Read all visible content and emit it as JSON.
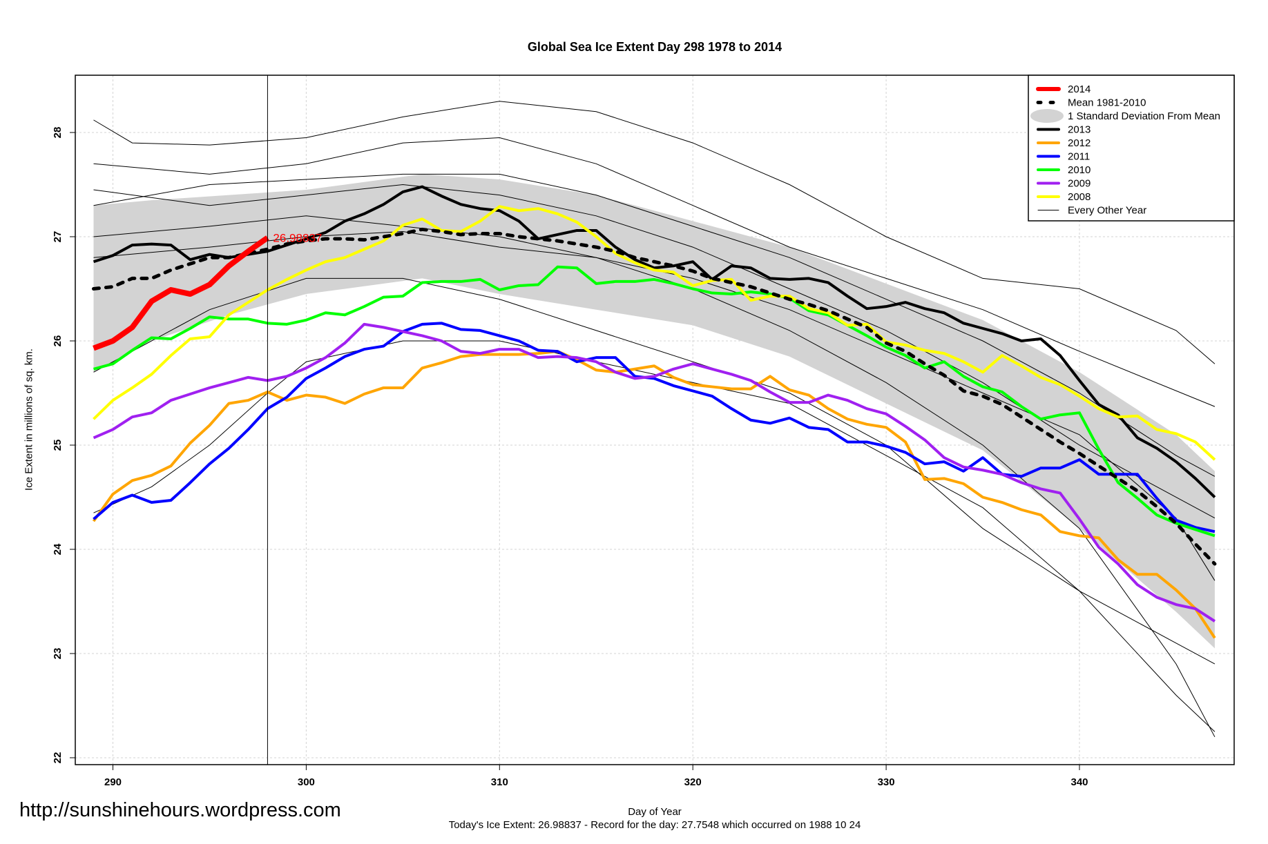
{
  "chart_data": {
    "type": "line",
    "title": "Global Sea Ice Extent Day 298 1978 to 2014",
    "xlabel": "Day of Year",
    "ylabel": "Ice Extent in millions of sq. km.",
    "footer": "Today's Ice Extent: 26.98837  - Record for the day: 27.7548 which occurred on 1988 10 24",
    "xlim": [
      289,
      347
    ],
    "ylim": [
      22,
      28.5
    ],
    "xticks": [
      290,
      300,
      310,
      320,
      330,
      340
    ],
    "yticks": [
      22,
      23,
      24,
      25,
      26,
      27,
      28
    ],
    "grid": true,
    "legend_position": "top-right",
    "current_day": 298,
    "current_label": "26.98837",
    "legend": [
      {
        "label": "2014",
        "color": "#ff0000",
        "style": "thick"
      },
      {
        "label": "Mean 1981-2010",
        "color": "#000000",
        "style": "dashed"
      },
      {
        "label": "1 Standard Deviation From Mean",
        "color": "#d3d3d3",
        "style": "band"
      },
      {
        "label": "2013",
        "color": "#000000",
        "style": "solid"
      },
      {
        "label": "2012",
        "color": "#ffa500",
        "style": "solid"
      },
      {
        "label": "2011",
        "color": "#0000ff",
        "style": "solid"
      },
      {
        "label": "2010",
        "color": "#00ff00",
        "style": "solid"
      },
      {
        "label": "2009",
        "color": "#a020f0",
        "style": "solid"
      },
      {
        "label": "2008",
        "color": "#ffff00",
        "style": "solid"
      },
      {
        "label": "Every Other Year",
        "color": "#000000",
        "style": "thin"
      }
    ],
    "sd_band": {
      "upper": [
        [
          289,
          27.3
        ],
        [
          292,
          27.35
        ],
        [
          296,
          27.4
        ],
        [
          300,
          27.45
        ],
        [
          306,
          27.6
        ],
        [
          310,
          27.55
        ],
        [
          315,
          27.4
        ],
        [
          320,
          27.15
        ],
        [
          325,
          26.9
        ],
        [
          330,
          26.55
        ],
        [
          335,
          26.2
        ],
        [
          340,
          25.7
        ],
        [
          345,
          25.1
        ],
        [
          347,
          24.75
        ]
      ],
      "lower": [
        [
          289,
          25.7
        ],
        [
          292,
          26.0
        ],
        [
          296,
          26.25
        ],
        [
          300,
          26.45
        ],
        [
          306,
          26.6
        ],
        [
          310,
          26.45
        ],
        [
          315,
          26.3
        ],
        [
          320,
          26.15
        ],
        [
          325,
          25.85
        ],
        [
          330,
          25.4
        ],
        [
          335,
          24.95
        ],
        [
          340,
          24.2
        ],
        [
          345,
          23.4
        ],
        [
          347,
          23.05
        ]
      ]
    },
    "other_years": [
      [
        [
          289,
          28.12
        ],
        [
          291,
          27.9
        ],
        [
          295,
          27.88
        ],
        [
          300,
          27.95
        ],
        [
          305,
          28.15
        ],
        [
          310,
          28.3
        ],
        [
          315,
          28.2
        ],
        [
          320,
          27.9
        ],
        [
          325,
          27.5
        ],
        [
          330,
          27.0
        ],
        [
          335,
          26.6
        ],
        [
          340,
          26.5
        ],
        [
          345,
          26.1
        ],
        [
          347,
          25.78
        ]
      ],
      [
        [
          289,
          27.7
        ],
        [
          295,
          27.6
        ],
        [
          300,
          27.7
        ],
        [
          305,
          27.9
        ],
        [
          310,
          27.95
        ],
        [
          315,
          27.7
        ],
        [
          320,
          27.3
        ],
        [
          325,
          26.9
        ],
        [
          330,
          26.6
        ],
        [
          335,
          26.3
        ],
        [
          340,
          25.9
        ],
        [
          347,
          25.37
        ]
      ],
      [
        [
          289,
          27.45
        ],
        [
          295,
          27.3
        ],
        [
          300,
          27.4
        ],
        [
          305,
          27.5
        ],
        [
          310,
          27.4
        ],
        [
          315,
          27.2
        ],
        [
          320,
          26.9
        ],
        [
          325,
          26.5
        ],
        [
          330,
          26.1
        ],
        [
          335,
          25.6
        ],
        [
          340,
          25.0
        ],
        [
          347,
          24.3
        ]
      ],
      [
        [
          289,
          27.0
        ],
        [
          295,
          27.1
        ],
        [
          300,
          27.2
        ],
        [
          305,
          27.1
        ],
        [
          310,
          27.0
        ],
        [
          315,
          26.8
        ],
        [
          320,
          26.5
        ],
        [
          325,
          26.1
        ],
        [
          330,
          25.6
        ],
        [
          335,
          25.0
        ],
        [
          340,
          24.2
        ],
        [
          345,
          22.9
        ],
        [
          347,
          22.2
        ]
      ],
      [
        [
          289,
          25.7
        ],
        [
          295,
          26.3
        ],
        [
          300,
          26.6
        ],
        [
          305,
          26.6
        ],
        [
          310,
          26.4
        ],
        [
          315,
          26.1
        ],
        [
          320,
          25.8
        ],
        [
          325,
          25.5
        ],
        [
          330,
          25.0
        ],
        [
          335,
          24.2
        ],
        [
          340,
          23.6
        ],
        [
          345,
          22.6
        ],
        [
          347,
          22.25
        ]
      ],
      [
        [
          289,
          24.35
        ],
        [
          292,
          24.6
        ],
        [
          295,
          25.0
        ],
        [
          298,
          25.5
        ],
        [
          300,
          25.8
        ],
        [
          305,
          26.0
        ],
        [
          310,
          26.0
        ],
        [
          315,
          25.8
        ],
        [
          320,
          25.6
        ],
        [
          325,
          25.4
        ],
        [
          330,
          24.9
        ],
        [
          335,
          24.4
        ],
        [
          340,
          23.6
        ],
        [
          345,
          23.1
        ],
        [
          347,
          22.9
        ]
      ],
      [
        [
          289,
          26.8
        ],
        [
          295,
          26.9
        ],
        [
          300,
          27.0
        ],
        [
          305,
          27.05
        ],
        [
          310,
          26.9
        ],
        [
          315,
          26.8
        ],
        [
          320,
          26.6
        ],
        [
          325,
          26.3
        ],
        [
          330,
          25.9
        ],
        [
          335,
          25.5
        ],
        [
          340,
          25.1
        ],
        [
          345,
          24.3
        ],
        [
          347,
          23.7
        ]
      ],
      [
        [
          289,
          27.3
        ],
        [
          295,
          27.5
        ],
        [
          300,
          27.55
        ],
        [
          305,
          27.6
        ],
        [
          310,
          27.6
        ],
        [
          315,
          27.4
        ],
        [
          320,
          27.1
        ],
        [
          325,
          26.8
        ],
        [
          330,
          26.4
        ],
        [
          335,
          26.0
        ],
        [
          340,
          25.5
        ],
        [
          345,
          24.9
        ],
        [
          347,
          24.7
        ]
      ]
    ],
    "series": [
      {
        "name": "Mean 1981-2010",
        "color": "#000000",
        "style": "dashed",
        "start": 289,
        "values": [
          26.5,
          26.52,
          26.6,
          26.6,
          26.68,
          26.74,
          26.8,
          26.8,
          26.84,
          26.88,
          26.93,
          26.96,
          26.98,
          26.98,
          26.97,
          27.0,
          27.03,
          27.07,
          27.05,
          27.02,
          27.03,
          27.03,
          27.0,
          26.98,
          26.96,
          26.93,
          26.9,
          26.86,
          26.8,
          26.76,
          26.72,
          26.67,
          26.6,
          26.56,
          26.52,
          26.46,
          26.4,
          26.35,
          26.29,
          26.21,
          26.13,
          25.98,
          25.9,
          25.78,
          25.67,
          25.52,
          25.47,
          25.39,
          25.27,
          25.15,
          25.03,
          24.92,
          24.8,
          24.68,
          24.56,
          24.41,
          24.25,
          24.05,
          23.86
        ]
      },
      {
        "name": "2013",
        "color": "#000000",
        "style": "solid",
        "start": 289,
        "values": [
          26.76,
          26.82,
          26.92,
          26.93,
          26.92,
          26.78,
          26.83,
          26.8,
          26.83,
          26.86,
          26.92,
          26.98,
          27.04,
          27.15,
          27.22,
          27.31,
          27.43,
          27.48,
          27.39,
          27.31,
          27.27,
          27.25,
          27.15,
          26.98,
          27.02,
          27.06,
          27.06,
          26.9,
          26.78,
          26.7,
          26.72,
          26.76,
          26.59,
          26.72,
          26.7,
          26.6,
          26.59,
          26.6,
          26.56,
          26.43,
          26.31,
          26.33,
          26.37,
          26.31,
          26.27,
          26.17,
          26.12,
          26.07,
          26.0,
          26.02,
          25.86,
          25.62,
          25.39,
          25.29,
          25.07,
          24.97,
          24.84,
          24.68,
          24.5
        ]
      },
      {
        "name": "2012",
        "color": "#ffa500",
        "style": "solid",
        "start": 289,
        "values": [
          24.27,
          24.53,
          24.66,
          24.71,
          24.8,
          25.02,
          25.19,
          25.4,
          25.43,
          25.51,
          25.43,
          25.48,
          25.46,
          25.4,
          25.49,
          25.55,
          25.55,
          25.74,
          25.79,
          25.85,
          25.87,
          25.87,
          25.87,
          25.88,
          25.9,
          25.82,
          25.72,
          25.7,
          25.73,
          25.76,
          25.65,
          25.58,
          25.56,
          25.54,
          25.54,
          25.66,
          25.53,
          25.48,
          25.35,
          25.25,
          25.2,
          25.17,
          25.03,
          24.67,
          24.68,
          24.63,
          24.5,
          24.45,
          24.38,
          24.33,
          24.17,
          24.13,
          24.11,
          23.9,
          23.76,
          23.76,
          23.61,
          23.43,
          23.15
        ]
      },
      {
        "name": "2011",
        "color": "#0000ff",
        "style": "solid",
        "start": 289,
        "values": [
          24.29,
          24.45,
          24.52,
          24.45,
          24.47,
          24.64,
          24.82,
          24.97,
          25.15,
          25.35,
          25.46,
          25.64,
          25.74,
          25.85,
          25.92,
          25.95,
          26.09,
          26.16,
          26.17,
          26.11,
          26.1,
          26.05,
          26.0,
          25.91,
          25.9,
          25.8,
          25.84,
          25.84,
          25.66,
          25.64,
          25.57,
          25.52,
          25.47,
          25.35,
          25.24,
          25.21,
          25.26,
          25.17,
          25.15,
          25.03,
          25.03,
          24.99,
          24.93,
          24.82,
          24.84,
          24.75,
          24.88,
          24.72,
          24.7,
          24.78,
          24.78,
          24.86,
          24.72,
          24.72,
          24.72,
          24.49,
          24.28,
          24.21,
          24.17
        ]
      },
      {
        "name": "2010",
        "color": "#00ff00",
        "style": "solid",
        "start": 289,
        "values": [
          25.73,
          25.78,
          25.91,
          26.03,
          26.02,
          26.12,
          26.23,
          26.21,
          26.21,
          26.17,
          26.16,
          26.2,
          26.27,
          26.25,
          26.33,
          26.42,
          26.43,
          26.56,
          26.57,
          26.57,
          26.59,
          26.49,
          26.53,
          26.54,
          26.71,
          26.7,
          26.55,
          26.57,
          26.57,
          26.59,
          26.55,
          26.5,
          26.46,
          26.45,
          26.47,
          26.45,
          26.41,
          26.29,
          26.25,
          26.15,
          26.05,
          25.94,
          25.86,
          25.74,
          25.8,
          25.66,
          25.56,
          25.51,
          25.37,
          25.25,
          25.29,
          25.31,
          24.96,
          24.64,
          24.49,
          24.33,
          24.25,
          24.19,
          24.13
        ]
      },
      {
        "name": "2009",
        "color": "#a020f0",
        "style": "solid",
        "start": 289,
        "values": [
          25.07,
          25.15,
          25.27,
          25.31,
          25.43,
          25.49,
          25.55,
          25.6,
          25.65,
          25.62,
          25.66,
          25.74,
          25.84,
          25.98,
          26.16,
          26.13,
          26.09,
          26.05,
          26.0,
          25.9,
          25.88,
          25.92,
          25.92,
          25.84,
          25.85,
          25.84,
          25.8,
          25.7,
          25.64,
          25.66,
          25.73,
          25.78,
          25.73,
          25.68,
          25.62,
          25.51,
          25.41,
          25.41,
          25.48,
          25.43,
          25.35,
          25.3,
          25.18,
          25.05,
          24.88,
          24.79,
          24.76,
          24.72,
          24.64,
          24.58,
          24.54,
          24.29,
          24.02,
          23.86,
          23.66,
          23.54,
          23.47,
          23.43,
          23.31
        ]
      },
      {
        "name": "2008",
        "color": "#ffff00",
        "style": "solid",
        "start": 289,
        "values": [
          25.25,
          25.43,
          25.55,
          25.68,
          25.86,
          26.02,
          26.04,
          26.25,
          26.37,
          26.49,
          26.59,
          26.68,
          26.76,
          26.8,
          26.88,
          26.96,
          27.11,
          27.17,
          27.06,
          27.05,
          27.15,
          27.29,
          27.25,
          27.27,
          27.22,
          27.14,
          27.0,
          26.84,
          26.75,
          26.68,
          26.66,
          26.53,
          26.58,
          26.59,
          26.39,
          26.43,
          26.43,
          26.31,
          26.27,
          26.15,
          26.16,
          25.99,
          25.96,
          25.91,
          25.88,
          25.8,
          25.7,
          25.86,
          25.76,
          25.65,
          25.58,
          25.47,
          25.35,
          25.27,
          25.28,
          25.15,
          25.11,
          25.03,
          24.86
        ]
      },
      {
        "name": "2014",
        "color": "#ff0000",
        "style": "thick",
        "start": 289,
        "values": [
          25.93,
          26.0,
          26.13,
          26.38,
          26.49,
          26.45,
          26.54,
          26.72,
          26.86,
          26.99
        ]
      }
    ]
  },
  "watermark": "http://sunshinehours.wordpress.com"
}
